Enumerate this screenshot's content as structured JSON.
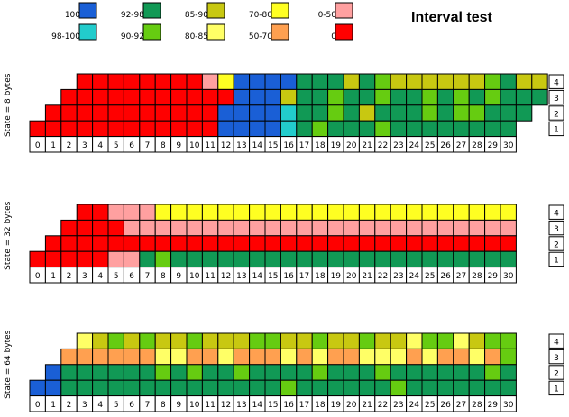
{
  "chart_data": {
    "type": "heatmap",
    "title": "Interval test",
    "legend": [
      {
        "label": "100",
        "key": "c100",
        "color": "#1a5fd6"
      },
      {
        "label": "98-100",
        "key": "c98",
        "color": "#22cccc"
      },
      {
        "label": "92-98",
        "key": "c92",
        "color": "#119955"
      },
      {
        "label": "90-92",
        "key": "c90",
        "color": "#66cc11"
      },
      {
        "label": "85-90",
        "key": "c85",
        "color": "#c8c811"
      },
      {
        "label": "80-85",
        "key": "c80",
        "color": "#ffff66"
      },
      {
        "label": "70-80",
        "key": "c70",
        "color": "#ffff22"
      },
      {
        "label": "50-70",
        "key": "c50",
        "color": "#ffa050"
      },
      {
        "label": "0-50",
        "key": "c0_50",
        "color": "#ffa0a0"
      },
      {
        "label": "0",
        "key": "c0",
        "color": "#ff0000"
      }
    ],
    "x_labels": [
      "0",
      "1",
      "2",
      "3",
      "4",
      "5",
      "6",
      "7",
      "8",
      "9",
      "10",
      "11",
      "12",
      "13",
      "14",
      "15",
      "16",
      "17",
      "18",
      "19",
      "20",
      "21",
      "22",
      "23",
      "24",
      "25",
      "26",
      "27",
      "28",
      "29",
      "30"
    ],
    "y_labels": [
      "4",
      "3",
      "2",
      "1"
    ],
    "panels": [
      {
        "ylabel": "State = 8 bytes",
        "rows": [
          {
            "start": 3,
            "cells": [
              "c0",
              "c0",
              "c0",
              "c0",
              "c0",
              "c0",
              "c0",
              "c0",
              "c0_50",
              "c70",
              "c100",
              "c100",
              "c100",
              "c100",
              "c92",
              "c92",
              "c92",
              "c85",
              "c92",
              "c90",
              "c85",
              "c85",
              "c85",
              "c85",
              "c85",
              "c85",
              "c90",
              "c92",
              "c85",
              "c85"
            ]
          },
          {
            "start": 2,
            "cells": [
              "c0",
              "c0",
              "c0",
              "c0",
              "c0",
              "c0",
              "c0",
              "c0",
              "c0",
              "c0",
              "c0",
              "c100",
              "c100",
              "c100",
              "c85",
              "c92",
              "c92",
              "c90",
              "c92",
              "c92",
              "c90",
              "c92",
              "c92",
              "c90",
              "c92",
              "c90",
              "c92",
              "c90",
              "c92",
              "c92",
              "c92"
            ]
          },
          {
            "start": 1,
            "cells": [
              "c0",
              "c0",
              "c0",
              "c0",
              "c0",
              "c0",
              "c0",
              "c0",
              "c0",
              "c0",
              "c0",
              "c100",
              "c100",
              "c100",
              "c100",
              "c98",
              "c92",
              "c92",
              "c90",
              "c92",
              "c85",
              "c92",
              "c92",
              "c92",
              "c90",
              "c92",
              "c90",
              "c90",
              "c92",
              "c92",
              "c92"
            ]
          },
          {
            "start": 0,
            "cells": [
              "c0",
              "c0",
              "c0",
              "c0",
              "c0",
              "c0",
              "c0",
              "c0",
              "c0",
              "c0",
              "c0",
              "c0",
              "c100",
              "c100",
              "c100",
              "c100",
              "c98",
              "c92",
              "c90",
              "c92",
              "c92",
              "c92",
              "c90",
              "c92",
              "c92",
              "c92",
              "c92",
              "c92",
              "c92",
              "c92",
              "c92"
            ]
          }
        ]
      },
      {
        "ylabel": "State = 32 bytes",
        "rows": [
          {
            "start": 3,
            "cells": [
              "c0",
              "c0",
              "c0_50",
              "c0_50",
              "c0_50",
              "c70",
              "c70",
              "c70",
              "c70",
              "c70",
              "c70",
              "c70",
              "c70",
              "c70",
              "c70",
              "c70",
              "c70",
              "c70",
              "c70",
              "c70",
              "c70",
              "c70",
              "c70",
              "c70",
              "c70",
              "c70",
              "c70",
              "c70"
            ]
          },
          {
            "start": 2,
            "cells": [
              "c0",
              "c0",
              "c0",
              "c0",
              "c0_50",
              "c0_50",
              "c0_50",
              "c0_50",
              "c0_50",
              "c0_50",
              "c0_50",
              "c0_50",
              "c0_50",
              "c0_50",
              "c0_50",
              "c0_50",
              "c0_50",
              "c0_50",
              "c0_50",
              "c0_50",
              "c0_50",
              "c0_50",
              "c0_50",
              "c0_50",
              "c0_50",
              "c0_50",
              "c0_50",
              "c0_50",
              "c0_50"
            ]
          },
          {
            "start": 1,
            "cells": [
              "c0",
              "c0",
              "c0",
              "c0",
              "c0",
              "c0",
              "c0",
              "c0",
              "c0",
              "c0",
              "c0",
              "c0",
              "c0",
              "c0",
              "c0",
              "c0",
              "c0",
              "c0",
              "c0",
              "c0",
              "c0",
              "c0",
              "c0",
              "c0",
              "c0",
              "c0",
              "c0",
              "c0",
              "c0",
              "c0"
            ]
          },
          {
            "start": 0,
            "cells": [
              "c0",
              "c0",
              "c0",
              "c0",
              "c0",
              "c0_50",
              "c0_50",
              "c92",
              "c90",
              "c92",
              "c92",
              "c92",
              "c92",
              "c92",
              "c92",
              "c92",
              "c92",
              "c92",
              "c92",
              "c92",
              "c92",
              "c92",
              "c92",
              "c92",
              "c92",
              "c92",
              "c92",
              "c92",
              "c92",
              "c92",
              "c92"
            ]
          }
        ]
      },
      {
        "ylabel": "State = 64 bytes",
        "rows": [
          {
            "start": 3,
            "cells": [
              "c80",
              "c85",
              "c90",
              "c85",
              "c90",
              "c85",
              "c85",
              "c90",
              "c85",
              "c85",
              "c85",
              "c90",
              "c90",
              "c85",
              "c85",
              "c90",
              "c85",
              "c85",
              "c90",
              "c85",
              "c85",
              "c80",
              "c90",
              "c90",
              "c80",
              "c85",
              "c90",
              "c90"
            ]
          },
          {
            "start": 2,
            "cells": [
              "c50",
              "c50",
              "c50",
              "c50",
              "c50",
              "c50",
              "c80",
              "c80",
              "c50",
              "c50",
              "c80",
              "c50",
              "c50",
              "c50",
              "c80",
              "c50",
              "c80",
              "c50",
              "c50",
              "c80",
              "c80",
              "c80",
              "c50",
              "c80",
              "c50",
              "c50",
              "c80",
              "c50",
              "c90"
            ]
          },
          {
            "start": 1,
            "cells": [
              "c100",
              "c92",
              "c92",
              "c92",
              "c92",
              "c92",
              "c92",
              "c90",
              "c92",
              "c90",
              "c92",
              "c92",
              "c90",
              "c92",
              "c92",
              "c92",
              "c92",
              "c90",
              "c92",
              "c92",
              "c92",
              "c90",
              "c92",
              "c92",
              "c92",
              "c92",
              "c92",
              "c92",
              "c90",
              "c92"
            ]
          },
          {
            "start": 0,
            "cells": [
              "c100",
              "c100",
              "c92",
              "c92",
              "c92",
              "c92",
              "c92",
              "c92",
              "c92",
              "c92",
              "c92",
              "c92",
              "c92",
              "c92",
              "c92",
              "c92",
              "c90",
              "c92",
              "c92",
              "c92",
              "c92",
              "c92",
              "c92",
              "c90",
              "c92",
              "c92",
              "c92",
              "c92",
              "c92",
              "c92",
              "c92"
            ]
          }
        ]
      }
    ]
  }
}
